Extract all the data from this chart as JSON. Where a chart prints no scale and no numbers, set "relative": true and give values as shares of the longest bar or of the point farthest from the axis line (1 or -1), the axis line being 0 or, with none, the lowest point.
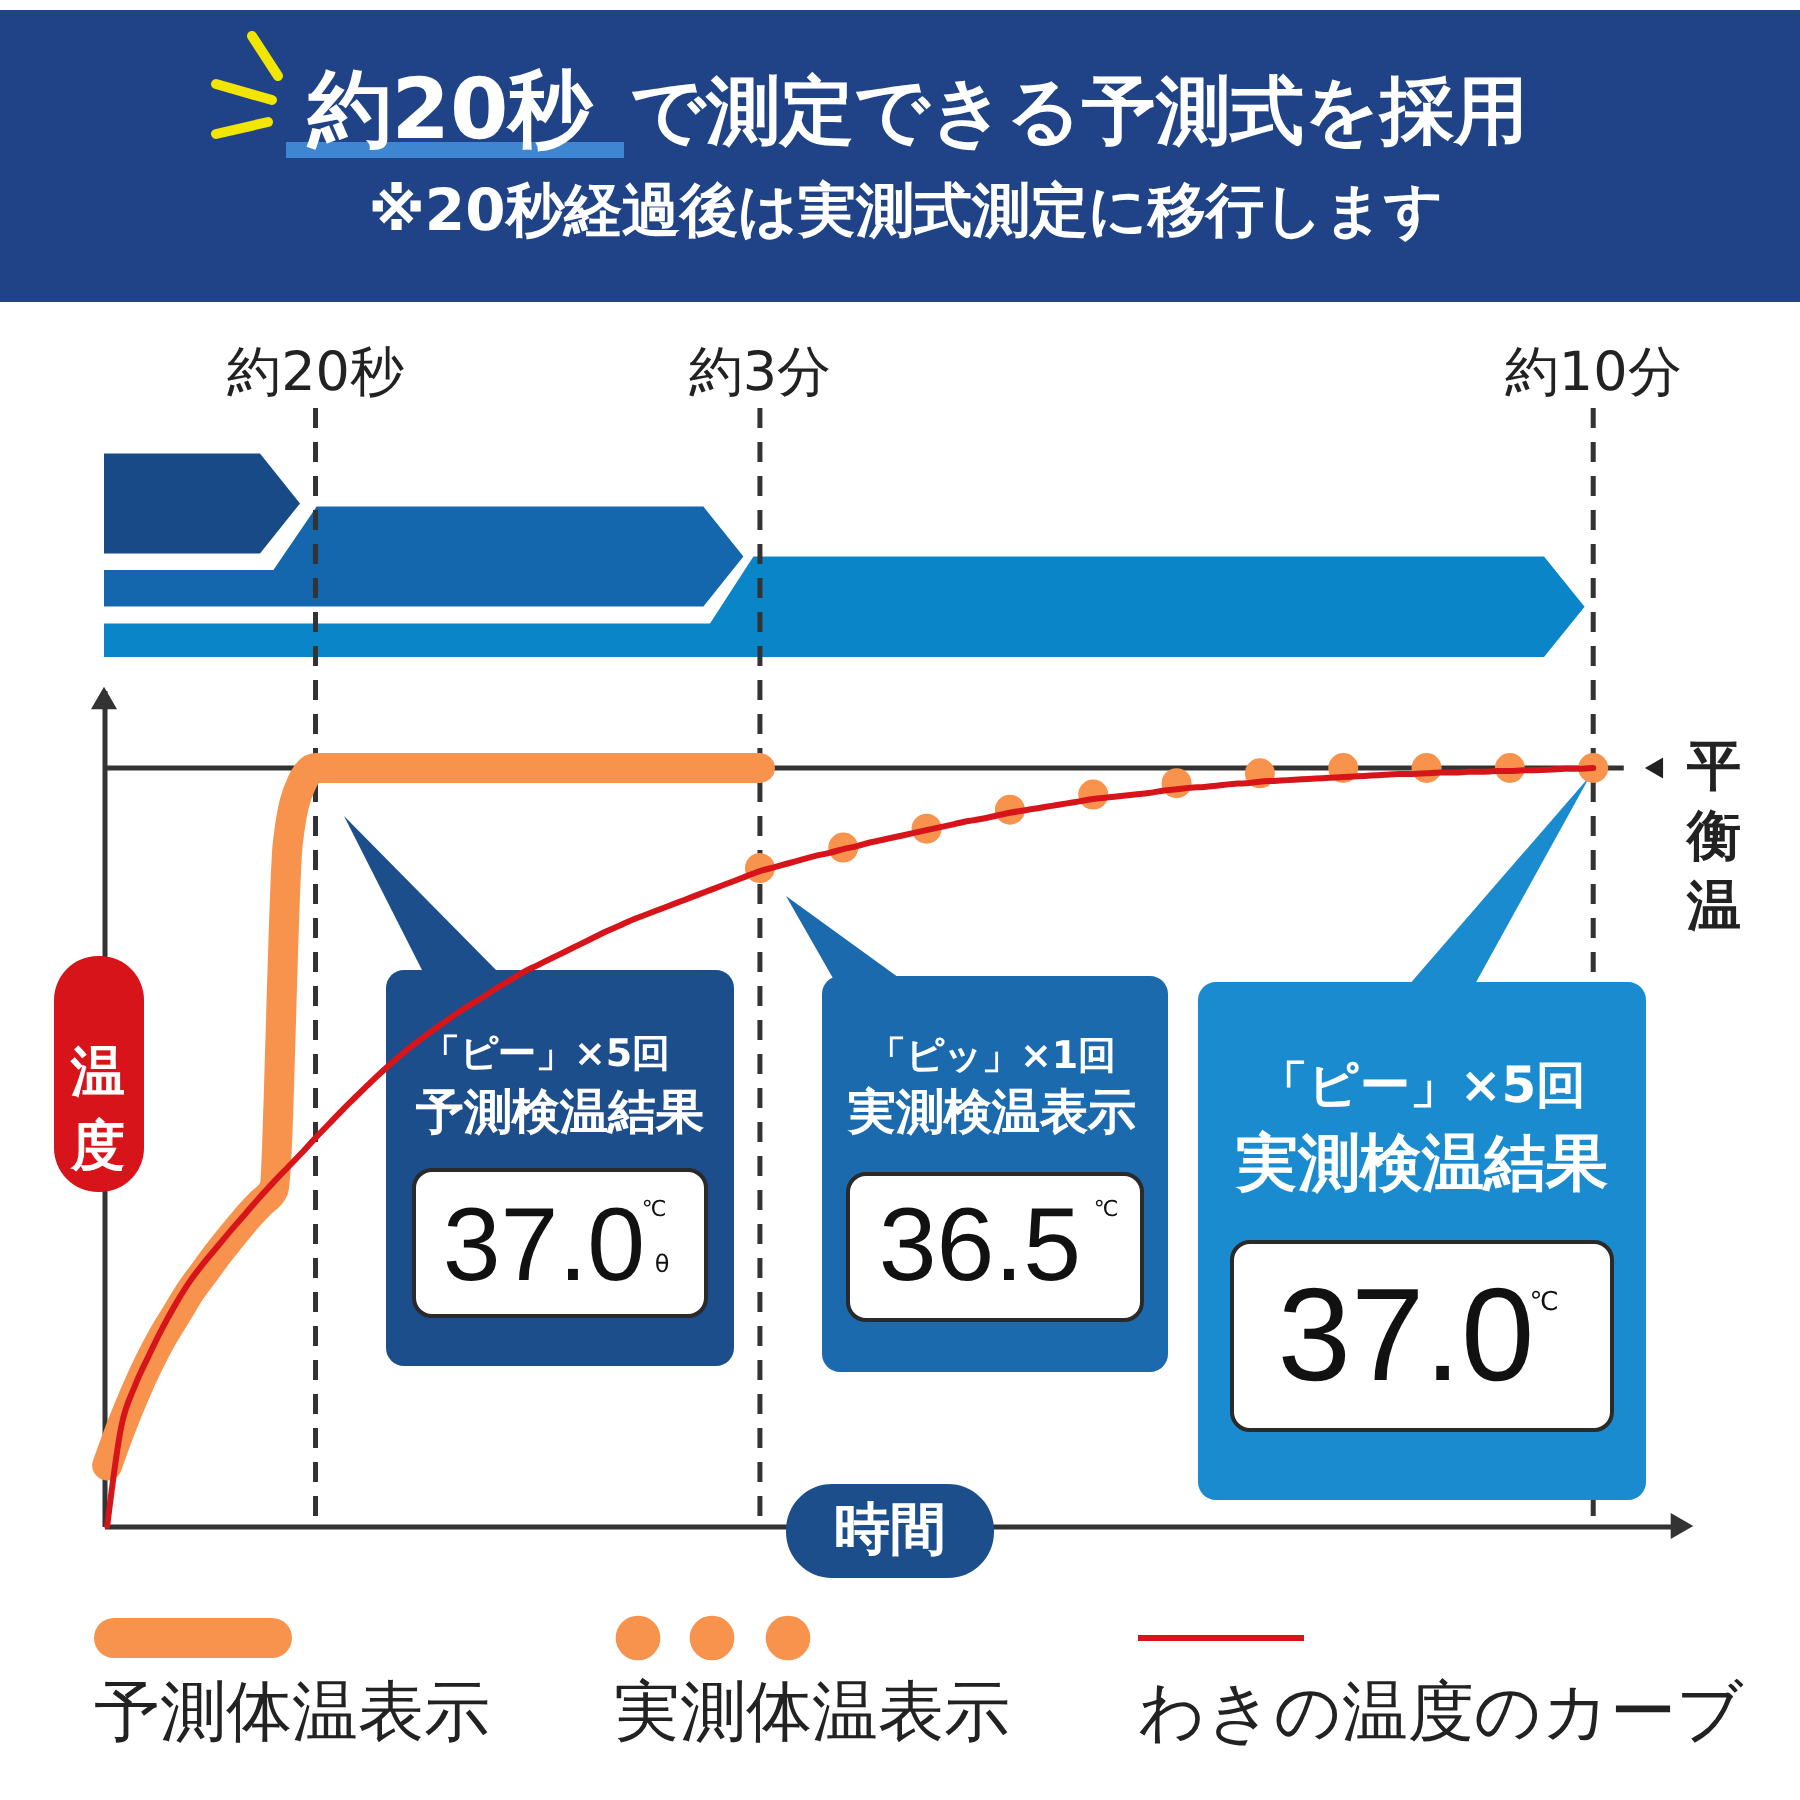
{
  "chart_data": {
    "type": "line",
    "title": "約20秒 で測定できる予測式を採用",
    "subtitle": "※20秒経過後は実測式測定に移行します",
    "xlabel": "時間",
    "ylabel": "温度",
    "relative": true,
    "legend": "bottom",
    "categories": [
      null,
      null,
      null,
      null,
      null,
      null,
      null,
      null,
      null,
      null,
      null,
      null,
      null,
      null,
      null,
      "約20秒",
      null,
      null,
      null,
      null,
      null,
      null,
      null,
      null,
      null,
      null,
      null,
      null,
      null,
      null,
      null,
      null,
      null,
      null,
      null,
      null,
      null,
      null,
      null,
      null,
      null,
      null,
      null,
      null,
      null,
      null,
      null,
      "約3分",
      null,
      null,
      null,
      null,
      null,
      null,
      null,
      null,
      null,
      null,
      null,
      null,
      null,
      null,
      null,
      null,
      null,
      null,
      null,
      null,
      null,
      null,
      null,
      null,
      null,
      null,
      null,
      null,
      null,
      null,
      null,
      null,
      null,
      null,
      null,
      null,
      null,
      null,
      null,
      null,
      null,
      null,
      null,
      null,
      null,
      null,
      null,
      null,
      null,
      null,
      null,
      null,
      null,
      null,
      null,
      null,
      null,
      null,
      null,
      "約10分"
    ],
    "series": [
      {
        "name": "予測体温表示",
        "color": "#f7934c",
        "values": [
          0.08,
          0.13,
          0.175,
          0.215,
          0.25,
          0.28,
          0.31,
          0.335,
          0.36,
          0.383,
          0.405,
          0.425,
          0.445,
          0.9,
          0.98,
          1,
          1,
          1,
          1,
          1,
          1,
          1,
          1,
          1,
          1,
          1,
          1,
          1,
          1,
          1,
          1,
          1,
          1,
          1,
          1,
          1,
          1,
          1,
          1,
          1,
          1,
          1,
          1,
          1,
          1,
          1,
          1,
          1,
          null,
          null,
          null,
          null,
          null,
          null,
          null,
          null,
          null,
          null,
          null,
          null,
          null,
          null,
          null,
          null,
          null,
          null,
          null,
          null,
          null,
          null,
          null,
          null,
          null,
          null,
          null,
          null,
          null,
          null,
          null,
          null,
          null,
          null,
          null,
          null,
          null,
          null,
          null,
          null,
          null,
          null,
          null,
          null,
          null,
          null,
          null,
          null,
          null,
          null,
          null,
          null,
          null,
          null,
          null,
          null,
          null,
          null,
          null,
          null
        ]
      },
      {
        "name": "実測体温表示",
        "type": "scatter",
        "marker": "circle",
        "color": "#f7934c",
        "values": [
          null,
          null,
          null,
          null,
          null,
          null,
          null,
          null,
          null,
          null,
          null,
          null,
          null,
          null,
          null,
          null,
          null,
          null,
          null,
          null,
          null,
          null,
          null,
          null,
          null,
          null,
          null,
          null,
          null,
          null,
          null,
          null,
          null,
          null,
          null,
          null,
          null,
          null,
          null,
          null,
          null,
          null,
          null,
          null,
          null,
          null,
          null,
          0.868,
          null,
          null,
          null,
          null,
          null,
          0.895,
          null,
          null,
          null,
          null,
          null,
          0.92,
          null,
          null,
          null,
          null,
          null,
          0.945,
          null,
          null,
          null,
          null,
          null,
          0.965,
          null,
          null,
          null,
          null,
          null,
          0.98,
          null,
          null,
          null,
          null,
          null,
          0.993,
          null,
          null,
          null,
          null,
          null,
          1,
          null,
          null,
          null,
          null,
          null,
          1,
          null,
          null,
          null,
          null,
          null,
          1,
          null,
          null,
          null,
          null,
          null,
          1
        ]
      },
      {
        "name": "わきの温度のカーブ",
        "color": "#d7141a",
        "values": [
          0,
          0.13,
          0.185,
          0.225,
          0.262,
          0.295,
          0.324,
          0.348,
          0.37,
          0.392,
          0.413,
          0.434,
          0.454,
          0.473,
          0.492,
          0.512,
          0.531,
          0.55,
          0.568,
          0.586,
          0.603,
          0.619,
          0.634,
          0.648,
          0.661,
          0.674,
          0.686,
          0.697,
          0.709,
          0.72,
          0.731,
          0.74,
          0.749,
          0.758,
          0.767,
          0.776,
          0.785,
          0.793,
          0.801,
          0.808,
          0.815,
          0.822,
          0.829,
          0.836,
          0.843,
          0.85,
          0.857,
          0.864,
          0.869,
          0.874,
          0.879,
          0.884,
          0.888,
          0.893,
          0.897,
          0.902,
          0.906,
          0.91,
          0.914,
          0.918,
          0.922,
          0.926,
          0.93,
          0.933,
          0.937,
          0.941,
          0.944,
          0.947,
          0.95,
          0.953,
          0.956,
          0.959,
          0.961,
          0.963,
          0.965,
          0.967,
          0.97,
          0.972,
          0.974,
          0.975,
          0.977,
          0.979,
          0.98,
          0.982,
          0.983,
          0.984,
          0.985,
          0.986,
          0.987,
          0.988,
          0.989,
          0.99,
          0.991,
          0.992,
          0.992,
          0.993,
          0.994,
          0.994,
          0.995,
          0.995,
          0.996,
          0.996,
          0.997,
          0.997,
          0.998,
          0.999,
          0.999,
          1
        ]
      }
    ],
    "ref_lines": [
      {
        "axis": "x",
        "value": "約20秒",
        "line_style": "dashed",
        "color": "#333333"
      },
      {
        "axis": "x",
        "value": "約3分",
        "line_style": "dashed",
        "color": "#333333"
      },
      {
        "axis": "x",
        "value": "約10分",
        "line_style": "dashed",
        "color": "#333333"
      },
      {
        "axis": "y",
        "value": 1,
        "label": "平衡温",
        "color": "#333333"
      }
    ],
    "annotations": [
      "「ピー」×5回",
      "予測検温結果",
      "37.0",
      "℃",
      "θ",
      "「ピッ」×1回",
      "実測検温表示",
      "36.5",
      "℃",
      "「ピー」×5回",
      "実測検温結果",
      "37.0",
      "℃"
    ]
  }
}
